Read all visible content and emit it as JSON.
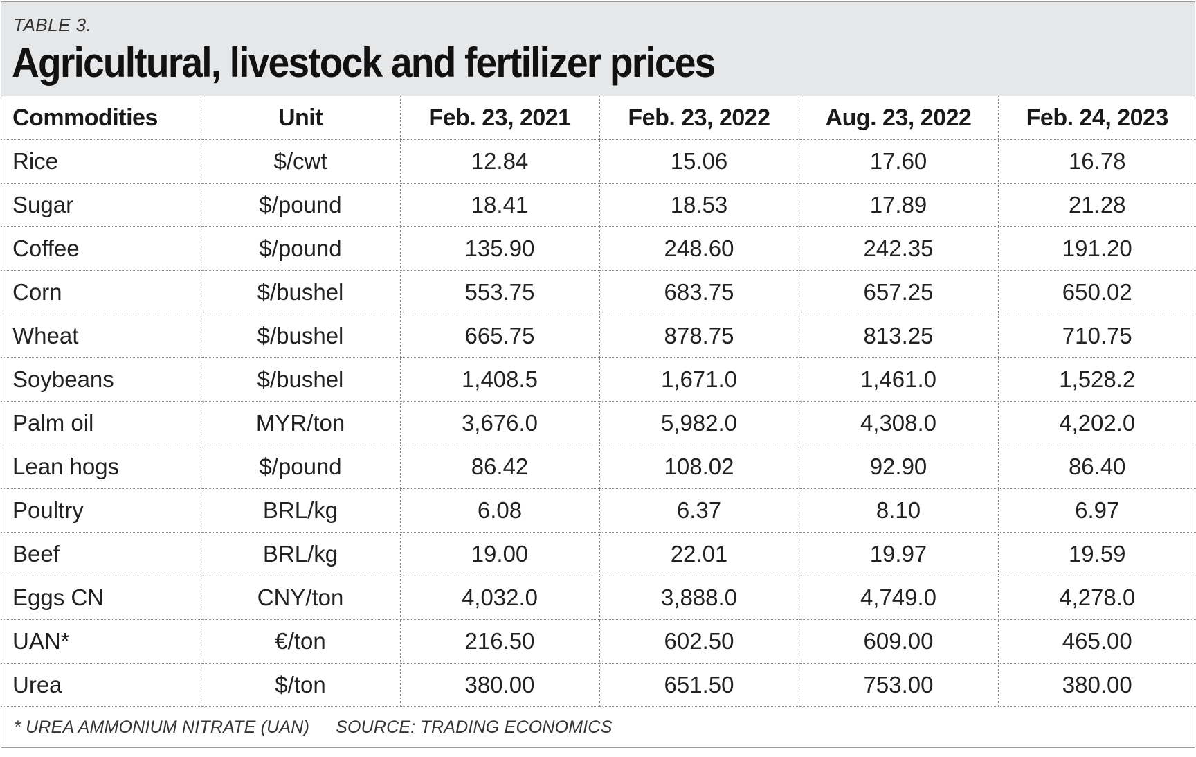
{
  "header": {
    "table_label": "TABLE 3.",
    "title": "Agricultural, livestock and fertilizer prices"
  },
  "columns": [
    "Commodities",
    "Unit",
    "Feb. 23, 2021",
    "Feb. 23, 2022",
    "Aug. 23, 2022",
    "Feb. 24, 2023"
  ],
  "rows": [
    [
      "Rice",
      "$/cwt",
      "12.84",
      "15.06",
      "17.60",
      "16.78"
    ],
    [
      "Sugar",
      "$/pound",
      "18.41",
      "18.53",
      "17.89",
      "21.28"
    ],
    [
      "Coffee",
      "$/pound",
      "135.90",
      "248.60",
      "242.35",
      "191.20"
    ],
    [
      "Corn",
      "$/bushel",
      "553.75",
      "683.75",
      "657.25",
      "650.02"
    ],
    [
      "Wheat",
      "$/bushel",
      "665.75",
      "878.75",
      "813.25",
      "710.75"
    ],
    [
      "Soybeans",
      "$/bushel",
      "1,408.5",
      "1,671.0",
      "1,461.0",
      "1,528.2"
    ],
    [
      "Palm oil",
      "MYR/ton",
      "3,676.0",
      "5,982.0",
      "4,308.0",
      "4,202.0"
    ],
    [
      "Lean hogs",
      "$/pound",
      "86.42",
      "108.02",
      "92.90",
      "86.40"
    ],
    [
      "Poultry",
      "BRL/kg",
      "6.08",
      "6.37",
      "8.10",
      "6.97"
    ],
    [
      "Beef",
      "BRL/kg",
      "19.00",
      "22.01",
      "19.97",
      "19.59"
    ],
    [
      "Eggs CN",
      "CNY/ton",
      "4,032.0",
      "3,888.0",
      "4,749.0",
      "4,278.0"
    ],
    [
      "UAN*",
      "€/ton",
      "216.50",
      "602.50",
      "609.00",
      "465.00"
    ],
    [
      "Urea",
      "$/ton",
      "380.00",
      "651.50",
      "753.00",
      "380.00"
    ]
  ],
  "footer": {
    "footnote": "* UREA AMMONIUM NITRATE (UAN)",
    "source": "SOURCE: TRADING ECONOMICS"
  }
}
